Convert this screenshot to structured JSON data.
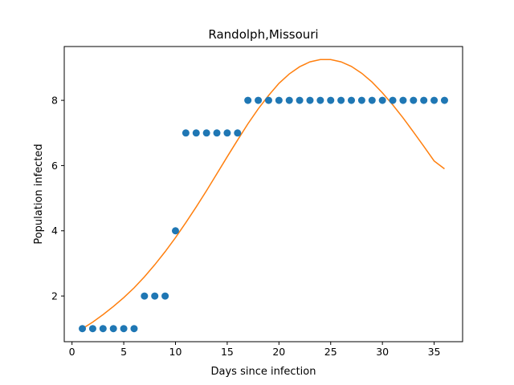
{
  "chart_data": {
    "type": "scatter",
    "title": "Randolph,Missouri",
    "xlabel": "Days since infection",
    "ylabel": "Population infected",
    "xlim": [
      -0.75,
      37.75
    ],
    "ylim": [
      0.6,
      9.65
    ],
    "x_ticks": [
      0,
      5,
      10,
      15,
      20,
      25,
      30,
      35
    ],
    "y_ticks": [
      2,
      4,
      6,
      8
    ],
    "grid": false,
    "series": [
      {
        "kind": "scatter",
        "color": "#1f77b4",
        "x": [
          1,
          2,
          3,
          4,
          5,
          6,
          7,
          8,
          9,
          10,
          11,
          12,
          13,
          14,
          15,
          16,
          17,
          18,
          19,
          20,
          21,
          22,
          23,
          24,
          25,
          26,
          27,
          28,
          29,
          30,
          31,
          32,
          33,
          34,
          35,
          36
        ],
        "y": [
          1,
          1,
          1,
          1,
          1,
          1,
          2,
          2,
          2,
          4,
          7,
          7,
          7,
          7,
          7,
          7,
          8,
          8,
          8,
          8,
          8,
          8,
          8,
          8,
          8,
          8,
          8,
          8,
          8,
          8,
          8,
          8,
          8,
          8,
          8,
          8
        ]
      },
      {
        "kind": "line",
        "color": "#ff7f0e",
        "x": [
          1,
          2,
          3,
          4,
          5,
          6,
          7,
          8,
          9,
          10,
          11,
          12,
          13,
          14,
          15,
          16,
          17,
          18,
          19,
          20,
          21,
          22,
          23,
          24,
          25,
          26,
          27,
          28,
          29,
          30,
          31,
          32,
          33,
          34,
          35,
          36
        ],
        "y": [
          1.0,
          1.2,
          1.43,
          1.68,
          1.95,
          2.25,
          2.59,
          2.96,
          3.36,
          3.79,
          4.25,
          4.73,
          5.23,
          5.75,
          6.27,
          6.78,
          7.28,
          7.74,
          8.15,
          8.52,
          8.81,
          9.03,
          9.18,
          9.25,
          9.25,
          9.18,
          9.04,
          8.83,
          8.56,
          8.23,
          7.86,
          7.46,
          7.03,
          6.59,
          6.14,
          5.9
        ]
      }
    ]
  }
}
